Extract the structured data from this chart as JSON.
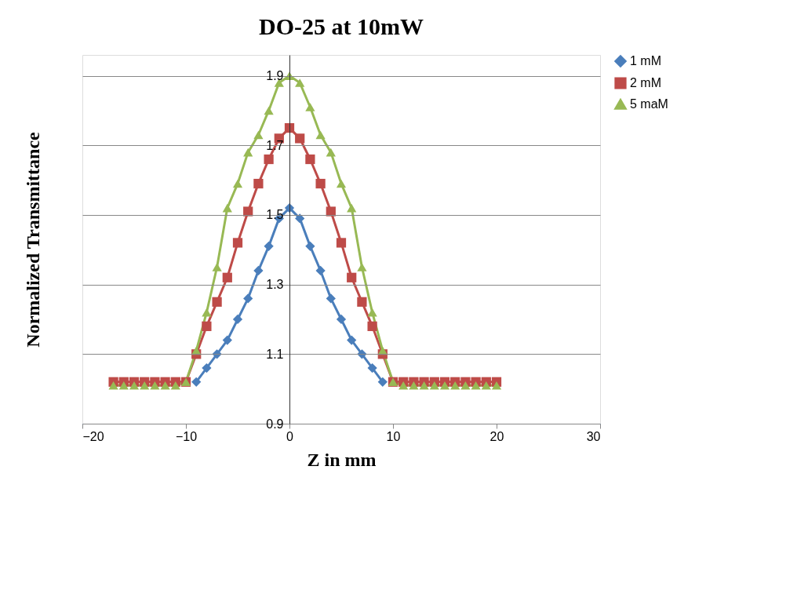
{
  "chart_data": {
    "type": "line",
    "title": "DO-25 at 10mW",
    "xlabel": "Z in mm",
    "ylabel": "Normalized Transmittance",
    "xlim": [
      -20,
      30
    ],
    "xticks": [
      -20,
      -10,
      0,
      10,
      20,
      30
    ],
    "ylim": [
      0.9,
      1.96
    ],
    "yticks": [
      0.9,
      1.1,
      1.3,
      1.5,
      1.7,
      1.9
    ],
    "grid": "y",
    "legend": "right",
    "x": [
      -17,
      -16,
      -15,
      -14,
      -13,
      -12,
      -11,
      -10,
      -9,
      -8,
      -7,
      -6,
      -5,
      -4,
      -3,
      -2,
      -1,
      0,
      1,
      2,
      3,
      4,
      5,
      6,
      7,
      8,
      9,
      10,
      11,
      12,
      13,
      14,
      15,
      16,
      17,
      18,
      19,
      20
    ],
    "series": [
      {
        "name": "1 mM",
        "color": "#4a7ebb",
        "marker": "diamond",
        "values": [
          null,
          null,
          null,
          null,
          null,
          null,
          null,
          null,
          1.02,
          1.06,
          1.1,
          1.14,
          1.2,
          1.26,
          1.34,
          1.41,
          1.49,
          1.52,
          1.49,
          1.41,
          1.34,
          1.26,
          1.2,
          1.14,
          1.1,
          1.06,
          1.02,
          null,
          null,
          null,
          null,
          null,
          null,
          null,
          null,
          null,
          null,
          null
        ]
      },
      {
        "name": "2 mM",
        "color": "#be4b48",
        "marker": "square",
        "values": [
          1.02,
          1.02,
          1.02,
          1.02,
          1.02,
          1.02,
          1.02,
          1.02,
          1.1,
          1.18,
          1.25,
          1.32,
          1.42,
          1.51,
          1.59,
          1.66,
          1.72,
          1.75,
          1.72,
          1.66,
          1.59,
          1.51,
          1.42,
          1.32,
          1.25,
          1.18,
          1.1,
          1.02,
          1.02,
          1.02,
          1.02,
          1.02,
          1.02,
          1.02,
          1.02,
          1.02,
          1.02,
          1.02
        ]
      },
      {
        "name": "5 maM",
        "color": "#98b954",
        "marker": "triangle",
        "values": [
          1.01,
          1.01,
          1.01,
          1.01,
          1.01,
          1.01,
          1.01,
          1.02,
          1.11,
          1.22,
          1.35,
          1.52,
          1.59,
          1.68,
          1.73,
          1.8,
          1.88,
          1.9,
          1.88,
          1.81,
          1.73,
          1.68,
          1.59,
          1.52,
          1.35,
          1.22,
          1.11,
          1.02,
          1.01,
          1.01,
          1.01,
          1.01,
          1.01,
          1.01,
          1.01,
          1.01,
          1.01,
          1.01
        ]
      }
    ]
  }
}
